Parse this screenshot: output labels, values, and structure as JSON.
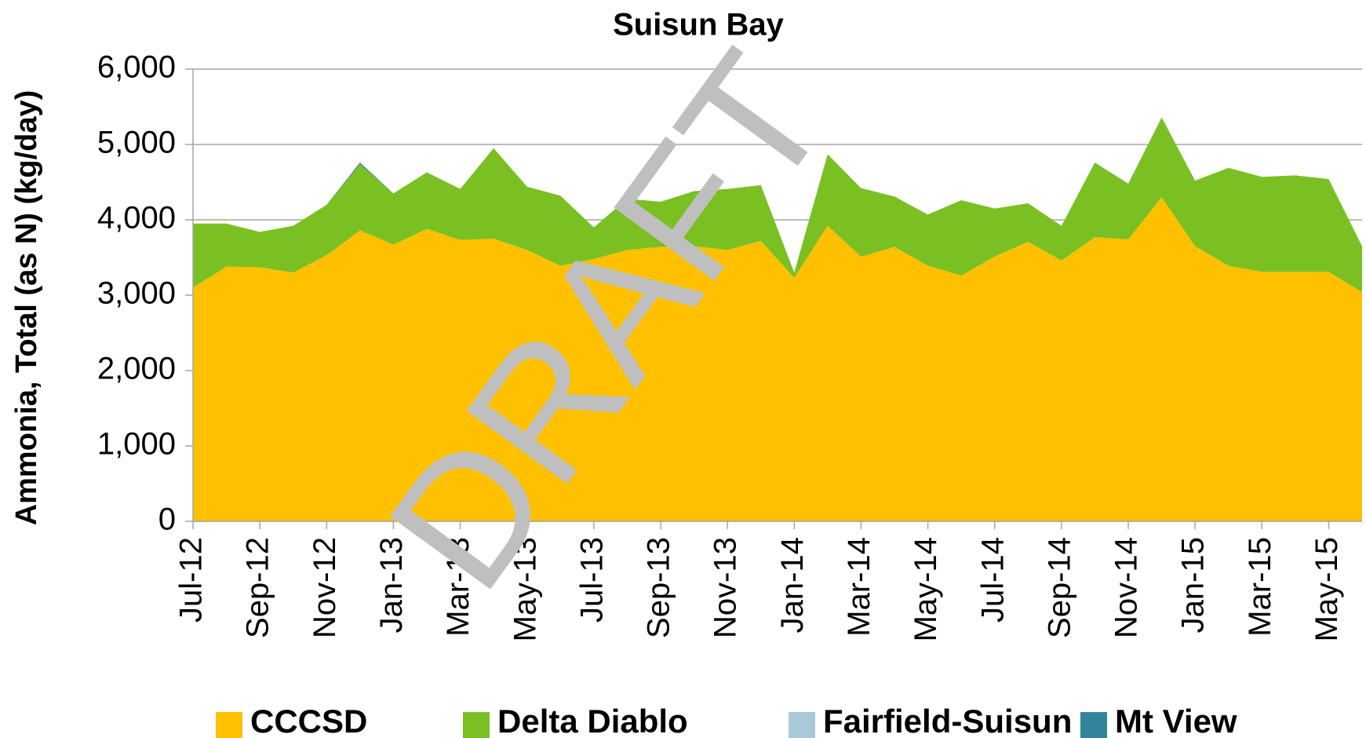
{
  "chart_data": {
    "type": "stacked_area",
    "title": "Suisun Bay",
    "ylabel": "Ammonia, Total (as N)  (kg/day)",
    "watermark": "DRAFT",
    "categories": [
      "Jul-12",
      null,
      "Sep-12",
      null,
      "Nov-12",
      null,
      "Jan-13",
      null,
      "Mar-13",
      null,
      "May-13",
      null,
      "Jul-13",
      null,
      "Sep-13",
      null,
      "Nov-13",
      null,
      "Jan-14",
      null,
      "Mar-14",
      null,
      "May-14",
      null,
      "Jul-14",
      null,
      "Sep-14",
      null,
      "Nov-14",
      null,
      "Jan-15",
      null,
      "Mar-15",
      null,
      "May-15",
      null
    ],
    "series": [
      {
        "name": "CCCSD",
        "color": "#FFC000",
        "values": [
          3100,
          3380,
          3370,
          3300,
          3530,
          3860,
          3670,
          3880,
          3730,
          3750,
          3600,
          3390,
          3480,
          3600,
          3640,
          3650,
          3600,
          3720,
          3230,
          3920,
          3510,
          3640,
          3390,
          3260,
          3510,
          3710,
          3460,
          3770,
          3740,
          4300,
          3650,
          3390,
          3310,
          3310,
          3310,
          3040
        ]
      },
      {
        "name": "Delta Diablo",
        "color": "#7AC023",
        "values": [
          850,
          570,
          470,
          620,
          670,
          880,
          680,
          750,
          680,
          1200,
          840,
          930,
          420,
          680,
          600,
          730,
          810,
          740,
          70,
          950,
          910,
          670,
          680,
          1000,
          640,
          510,
          460,
          990,
          740,
          1060,
          870,
          1300,
          1260,
          1280,
          1230,
          610
        ]
      },
      {
        "name": "Fairfield-Suisun",
        "color": "#A9C8D8",
        "values": [
          0,
          0,
          0,
          0,
          0,
          0,
          0,
          0,
          0,
          0,
          0,
          0,
          0,
          0,
          0,
          0,
          0,
          0,
          0,
          0,
          0,
          0,
          0,
          0,
          0,
          0,
          0,
          0,
          0,
          0,
          0,
          0,
          0,
          0,
          0,
          0
        ]
      },
      {
        "name": "Mt View",
        "color": "#31849B",
        "values": [
          0,
          0,
          0,
          0,
          0,
          20,
          0,
          0,
          0,
          0,
          0,
          0,
          0,
          0,
          0,
          0,
          0,
          0,
          0,
          0,
          0,
          0,
          0,
          0,
          0,
          0,
          0,
          0,
          0,
          0,
          0,
          0,
          0,
          0,
          0,
          0
        ]
      }
    ],
    "ylim": [
      0,
      6000
    ],
    "yticks": [
      0,
      {
        "value": 1000,
        "label": "1,000"
      },
      {
        "value": 2000,
        "label": "2,000"
      },
      {
        "value": 3000,
        "label": "3,000"
      },
      {
        "value": 4000,
        "label": "4,000"
      },
      {
        "value": 5000,
        "label": "5,000"
      },
      {
        "value": 6000,
        "label": "6,000"
      }
    ],
    "grid": true,
    "legend": "bottom"
  }
}
